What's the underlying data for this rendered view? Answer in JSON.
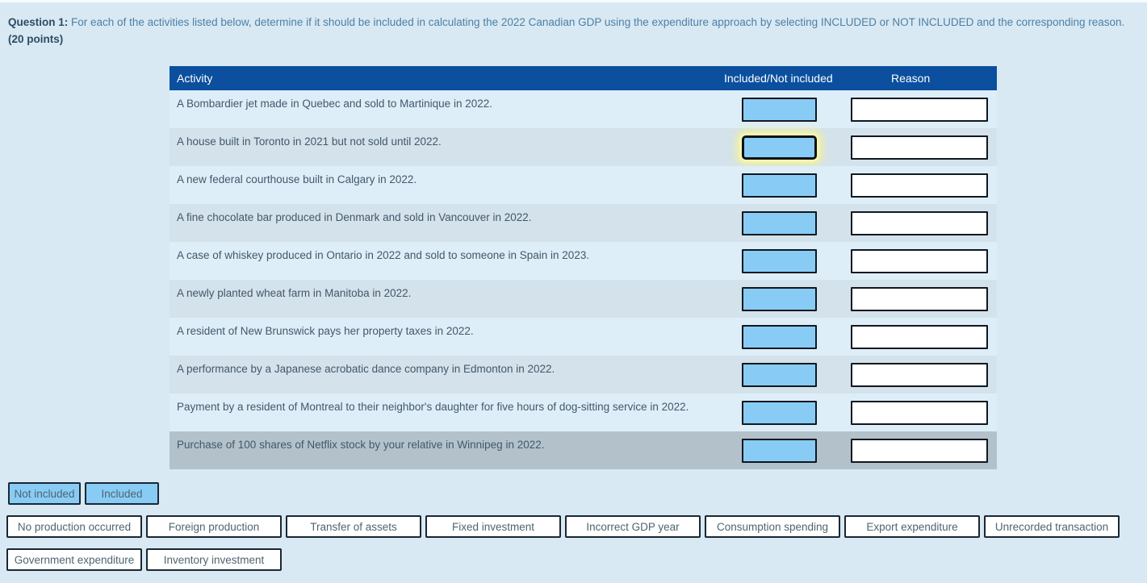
{
  "question": {
    "label": "Question 1:",
    "text": "For each of the activities listed below, determine if it should be included in calculating the 2022 Canadian GDP using the expenditure approach by selecting INCLUDED or NOT INCLUDED and the corresponding reason.",
    "points": "(20 points)"
  },
  "table": {
    "headers": [
      "Activity",
      "Included/Not included",
      "Reason"
    ],
    "focused_row_index": 1,
    "gray_row_index": 9,
    "rows": [
      {
        "activity": "A Bombardier jet made in Quebec and sold to Martinique in 2022."
      },
      {
        "activity": "A house built in Toronto in 2021 but not sold until 2022."
      },
      {
        "activity": "A new federal courthouse built in Calgary in 2022."
      },
      {
        "activity": "A fine chocolate bar produced in Denmark and sold in Vancouver in 2022."
      },
      {
        "activity": "A case of whiskey produced in Ontario in 2022 and sold to someone in Spain in 2023."
      },
      {
        "activity": "A newly planted wheat farm in Manitoba in 2022."
      },
      {
        "activity": "A resident of New Brunswick pays her property taxes in 2022."
      },
      {
        "activity": "A performance by a Japanese acrobatic dance company in Edmonton in 2022."
      },
      {
        "activity": "Payment by a resident of Montreal to their neighbor's daughter for five hours of dog-sitting service in 2022."
      },
      {
        "activity": "Purchase of 100 shares of Netflix stock by your relative in Winnipeg in 2022."
      }
    ]
  },
  "choices": {
    "included_options": [
      "Not included",
      "Included"
    ],
    "reason_options": [
      "No production occurred",
      "Foreign production",
      "Transfer of assets",
      "Fixed investment",
      "Incorrect GDP year",
      "Consumption spending",
      "Export expenditure",
      "Unrecorded transaction",
      "Government expenditure",
      "Inventory investment"
    ]
  },
  "colors": {
    "header_bg": "#0b4f9e",
    "dropzone_blue": "#88ccf6",
    "row_light": "#deeef8",
    "row_dark": "#d4e2eb",
    "row_gray": "#b3c2ca",
    "focus_glow": "#f5f3a0",
    "page_bg": "#d8e9f3"
  }
}
